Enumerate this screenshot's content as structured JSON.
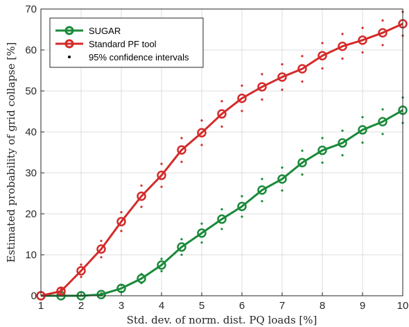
{
  "chart_data": {
    "type": "line",
    "xlabel": "Std. dev. of norm. dist. PQ loads [%]",
    "ylabel": "Estimated probability of grid collapse [%]",
    "xlim": [
      1,
      10
    ],
    "ylim": [
      0,
      70
    ],
    "xticks": [
      1,
      2,
      3,
      4,
      5,
      6,
      7,
      8,
      9,
      10
    ],
    "yticks": [
      0,
      10,
      20,
      30,
      40,
      50,
      60,
      70
    ],
    "grid": true,
    "legend_position": "top-left",
    "x": [
      1,
      1.5,
      2,
      2.5,
      3,
      3.5,
      4,
      4.5,
      5,
      5.5,
      6,
      6.5,
      7,
      7.5,
      8,
      8.5,
      9,
      9.5,
      10
    ],
    "series": [
      {
        "name": "SUGAR",
        "color": "#1a8a3a",
        "values": [
          0,
          0,
          0,
          0.3,
          1.8,
          4.2,
          7.5,
          11.9,
          15.3,
          18.7,
          21.8,
          25.8,
          28.5,
          32.5,
          35.5,
          37.3,
          40.5,
          42.5,
          45.3
        ],
        "ci_lower": [
          0,
          0,
          0,
          0.1,
          1.0,
          3.1,
          6.0,
          10.0,
          13.0,
          16.3,
          19.3,
          23.1,
          25.7,
          29.6,
          32.5,
          34.3,
          37.4,
          39.5,
          42.2
        ],
        "ci_upper": [
          0,
          0,
          0,
          0.6,
          2.6,
          5.3,
          9.0,
          13.8,
          17.6,
          21.1,
          24.3,
          28.5,
          31.3,
          35.4,
          38.5,
          40.3,
          43.6,
          45.5,
          48.4
        ]
      },
      {
        "name": "Standard PF tool",
        "color": "#d42a2a",
        "values": [
          0,
          1.1,
          6.1,
          11.4,
          18.1,
          24.3,
          29.4,
          35.6,
          39.8,
          44.4,
          48.2,
          51.0,
          53.4,
          55.4,
          58.6,
          60.9,
          62.4,
          64.2,
          66.4
        ],
        "ci_lower": [
          0,
          0.6,
          4.6,
          9.4,
          15.8,
          21.7,
          26.6,
          32.7,
          36.8,
          41.3,
          45.1,
          47.9,
          50.3,
          52.3,
          55.5,
          57.9,
          59.4,
          61.2,
          63.5
        ],
        "ci_upper": [
          0,
          1.6,
          7.6,
          13.4,
          20.4,
          26.9,
          32.2,
          38.5,
          42.8,
          47.5,
          51.3,
          54.1,
          56.5,
          58.5,
          61.7,
          63.9,
          65.4,
          67.2,
          69.3
        ]
      }
    ],
    "ci_legend_label": "95% confidence intervals"
  }
}
